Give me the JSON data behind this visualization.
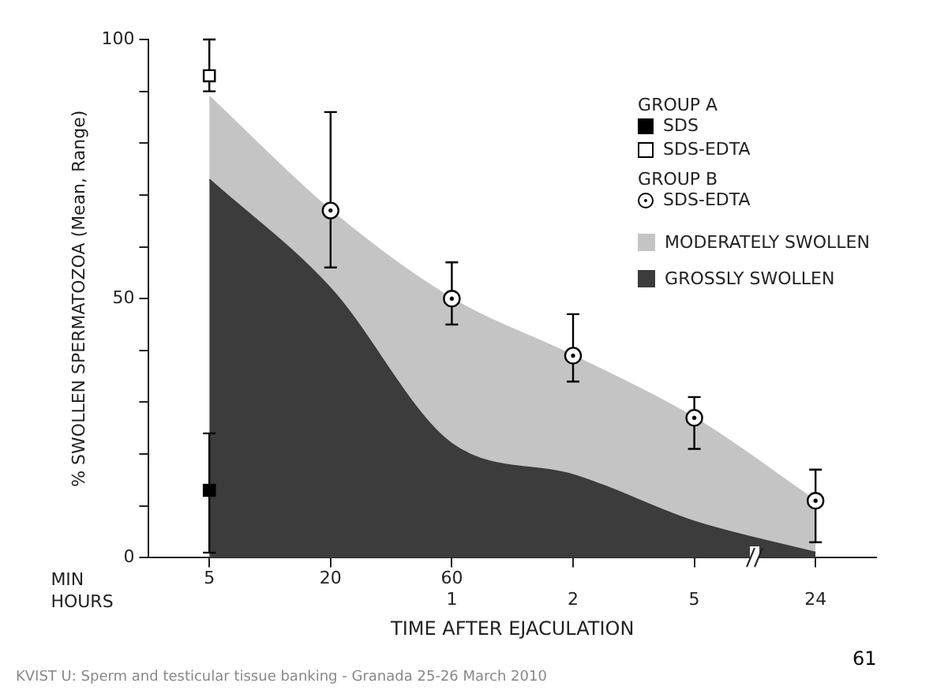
{
  "chart_data": {
    "type": "area",
    "stacked": true,
    "ylabel": "% SWOLLEN SPERMATOZOA (Mean, Range)",
    "xlabel": "TIME AFTER EJACULATION",
    "categories": [
      "5",
      "20",
      "60\n1",
      "\n2",
      "\n5",
      "\n24"
    ],
    "ylim": [
      0,
      100
    ],
    "yticks": [
      0,
      {
        "value": 10,
        "label": null
      },
      {
        "value": 20,
        "label": null
      },
      {
        "value": 30,
        "label": null
      },
      {
        "value": 40,
        "label": null
      },
      50,
      {
        "value": 60,
        "label": null
      },
      {
        "value": 70,
        "label": null
      },
      {
        "value": 80,
        "label": null
      },
      {
        "value": 90,
        "label": null
      },
      100
    ],
    "grid": false,
    "legend": "top right",
    "series": [
      {
        "name": "GROSSLY SWOLLEN",
        "type": "area",
        "color": "#3c3c3c",
        "values": [
          73,
          52,
          22,
          16,
          7,
          1
        ]
      },
      {
        "name": "MODERATELY SWOLLEN",
        "type": "area",
        "color": "#c4c4c4",
        "values": [
          16,
          15,
          28,
          23,
          20,
          10
        ]
      },
      {
        "name": "SDS",
        "type": "scatter",
        "marker": "square",
        "color": "#000000",
        "values": [
          13,
          null,
          null,
          null,
          null,
          null
        ],
        "errors": [
          [
            1,
            24
          ],
          null,
          null,
          null,
          null,
          null
        ]
      },
      {
        "name": "SDS-EDTA",
        "type": "scatter",
        "marker": "square",
        "color": "#ffffff",
        "values": [
          93,
          null,
          null,
          null,
          null,
          null
        ],
        "errors": [
          [
            90,
            100
          ],
          null,
          null,
          null,
          null,
          null
        ]
      },
      {
        "name": "SDS-EDTA",
        "type": "scatter",
        "marker": "circle",
        "color": "#ffffff",
        "values": [
          null,
          67,
          50,
          39,
          27,
          11
        ],
        "errors": [
          null,
          [
            56,
            86
          ],
          [
            45,
            57
          ],
          [
            34,
            47
          ],
          [
            21,
            31
          ],
          [
            3,
            17
          ]
        ]
      }
    ],
    "annotations": [
      "GROUP A",
      "GROUP B",
      "MIN",
      "HOURS",
      "KVIST U: Sperm and testicular tissue banking - Granada 25-26 March 2010",
      "61"
    ]
  }
}
